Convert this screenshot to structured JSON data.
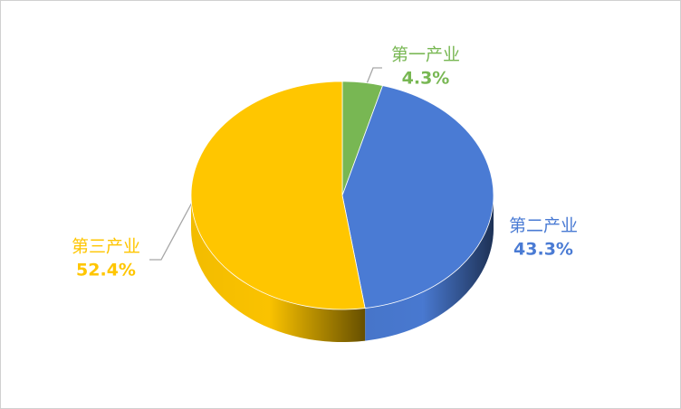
{
  "chart_data": {
    "type": "pie3d",
    "categories": [
      "第一产业",
      "第二产业",
      "第三产业"
    ],
    "values": [
      4.3,
      43.3,
      52.4
    ],
    "value_labels": [
      "4.3%",
      "43.3%",
      "52.4%"
    ],
    "colors": [
      "#78b753",
      "#4a7bd4",
      "#ffc600"
    ]
  }
}
